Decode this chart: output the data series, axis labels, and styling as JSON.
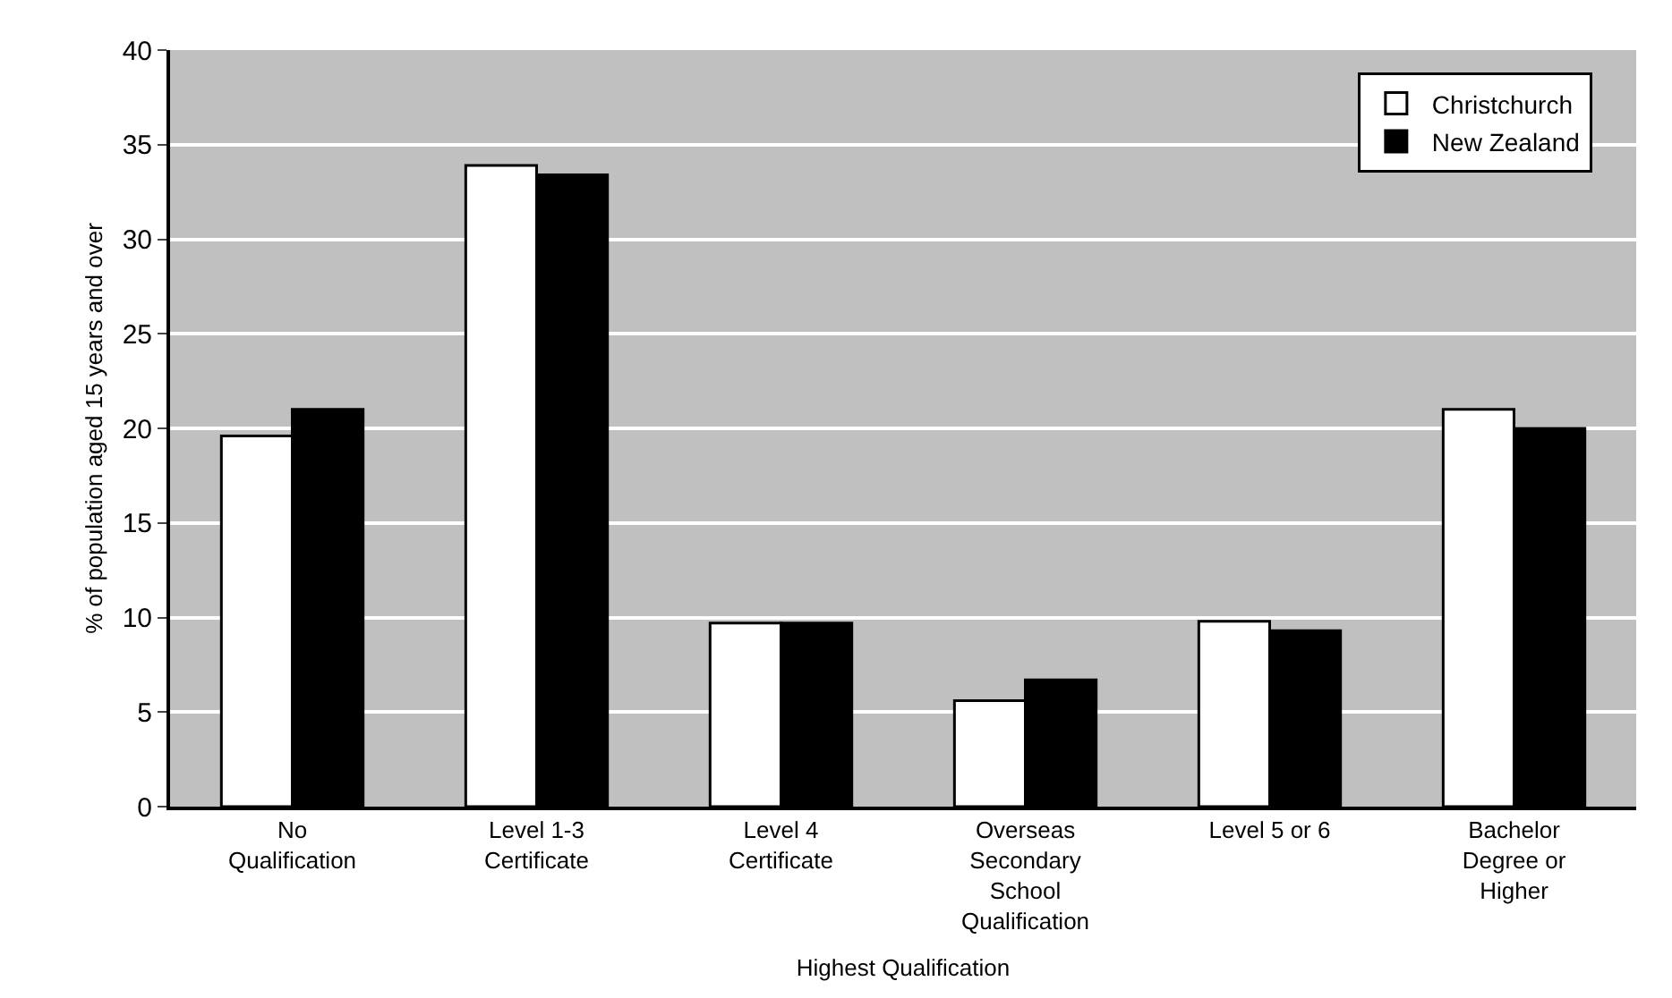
{
  "chart_data": {
    "type": "bar",
    "xlabel": "Highest Qualification",
    "ylabel": "% of population aged 15 years and over",
    "categories": [
      "No\nQualification",
      "Level 1-3\nCertificate",
      "Level 4\nCertificate",
      "Overseas\nSecondary\nSchool\nQualification",
      "Level 5 or 6",
      "Bachelor\nDegree or\nHigher"
    ],
    "series": [
      {
        "name": "Christchurch",
        "color": "#ffffff",
        "values": [
          19.6,
          33.9,
          9.7,
          5.6,
          9.8,
          21.0
        ]
      },
      {
        "name": "New Zealand",
        "color": "#000000",
        "values": [
          21.0,
          33.4,
          9.7,
          6.7,
          9.3,
          20.0
        ]
      }
    ],
    "ylim": [
      0,
      40
    ],
    "yticks": [
      0,
      5,
      10,
      15,
      20,
      25,
      30,
      35,
      40
    ],
    "grid": "y",
    "legend": "top right"
  }
}
